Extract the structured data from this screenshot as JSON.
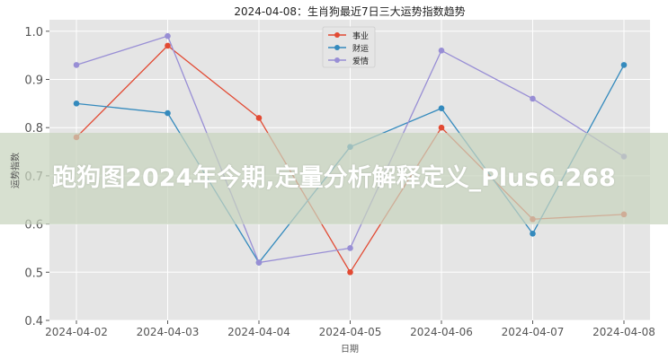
{
  "chart_data": {
    "type": "line",
    "title": "2024-04-08：生肖狗最近7日三大运势指数趋势",
    "xlabel": "日期",
    "ylabel": "运势指数",
    "categories": [
      "2024-04-02",
      "2024-04-03",
      "2024-04-04",
      "2024-04-05",
      "2024-04-06",
      "2024-04-07",
      "2024-04-08"
    ],
    "yticks": [
      "0.4",
      "0.5",
      "0.6",
      "0.7",
      "0.8",
      "0.9",
      "1.0"
    ],
    "ylim": [
      0.4,
      1.025
    ],
    "grid": true,
    "legend_position": "top-center",
    "series": [
      {
        "name": "事业",
        "color": "#e24a33",
        "values": [
          0.78,
          0.97,
          0.82,
          0.5,
          0.8,
          0.61,
          0.62
        ]
      },
      {
        "name": "财运",
        "color": "#348abd",
        "values": [
          0.85,
          0.83,
          0.52,
          0.76,
          0.84,
          0.58,
          0.93
        ]
      },
      {
        "name": "爱情",
        "color": "#988ed5",
        "values": [
          0.93,
          0.99,
          0.52,
          0.55,
          0.96,
          0.86,
          0.74
        ]
      }
    ]
  },
  "overlay": {
    "text": "跑狗图2024年今期,定量分析解释定义_Plus6.268"
  }
}
